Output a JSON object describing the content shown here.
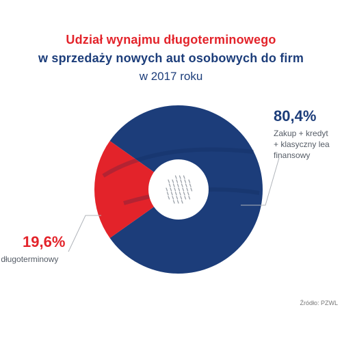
{
  "header": {
    "line1": "Udział wynajmu długoterminowego",
    "line2": "w sprzedaży nowych aut osobowych do firm",
    "line3": "w 2017 roku"
  },
  "chart_data": {
    "type": "pie",
    "title": "Udział wynajmu długoterminowego w sprzedaży nowych aut osobowych do firm w 2017 roku",
    "slices": [
      {
        "value": 80.4,
        "value_label": "80,4%",
        "label_lines": [
          "Zakup + kredyt",
          "+ klasyczny lea",
          "finansowy"
        ],
        "color": "#1c3d7a"
      },
      {
        "value": 19.6,
        "value_label": "19,6%",
        "label_lines": [
          "m długoterminowy"
        ],
        "color": "#e3232a"
      }
    ],
    "source": "Źródło: PZWL"
  }
}
